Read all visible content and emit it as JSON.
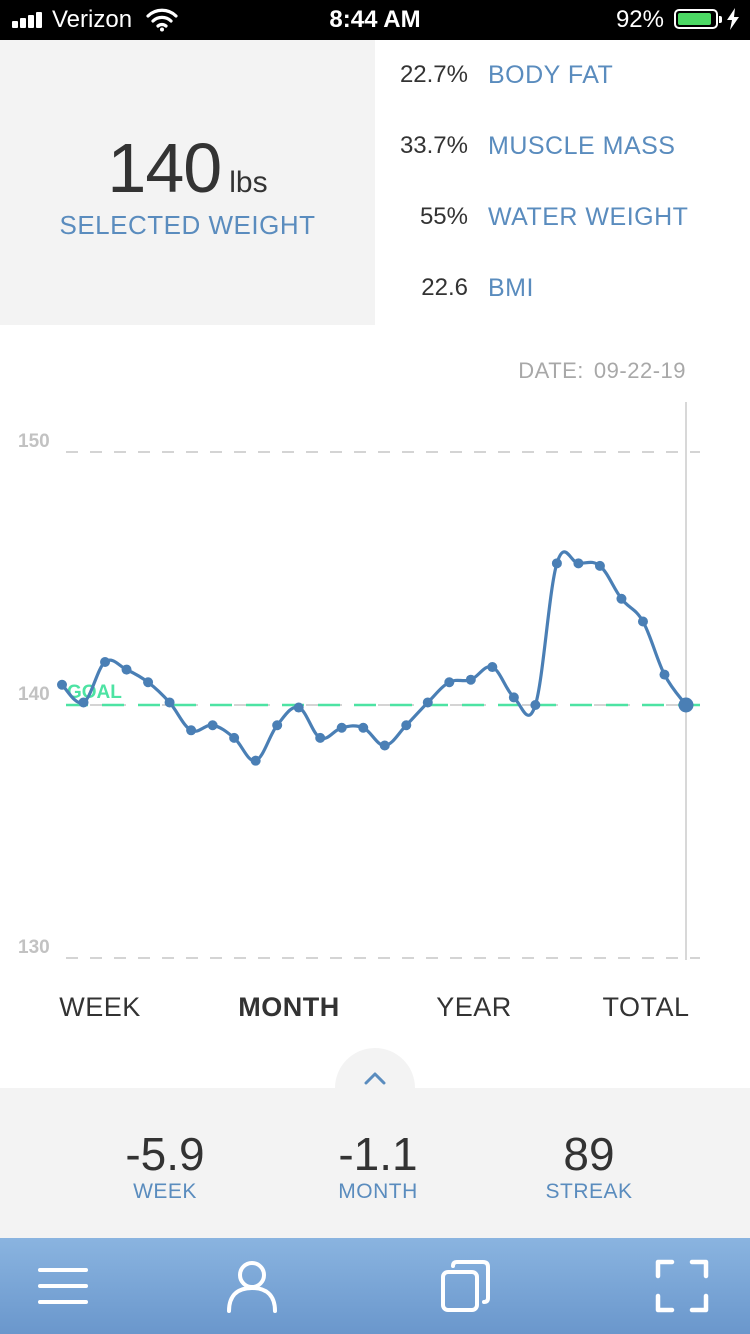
{
  "status_bar": {
    "carrier": "Verizon",
    "time": "8:44 AM",
    "battery_pct": "92%",
    "battery_level": 0.92,
    "battery_color": "#4cd964"
  },
  "weight": {
    "value": "140",
    "unit": "lbs",
    "label": "SELECTED WEIGHT"
  },
  "metrics": [
    {
      "value": "22.7%",
      "label": "BODY FAT"
    },
    {
      "value": "33.7%",
      "label": "MUSCLE MASS"
    },
    {
      "value": "55%",
      "label": "WATER WEIGHT"
    },
    {
      "value": "22.6",
      "label": "BMI"
    }
  ],
  "date": {
    "label": "DATE:",
    "value": "09-22-19"
  },
  "chart_data": {
    "type": "line",
    "y_ticks": [
      "150",
      "140",
      "130"
    ],
    "ylim": [
      130,
      150
    ],
    "grid": "dashed horizontal",
    "goal": {
      "label": "GOAL",
      "value": 140
    },
    "series": [
      {
        "values": [
          140.8,
          140.1,
          141.7,
          141.4,
          140.9,
          140.1,
          139.0,
          139.2,
          138.7,
          137.8,
          139.2,
          139.9,
          138.7,
          139.1,
          139.1,
          138.4,
          139.2,
          140.1,
          140.9,
          141.0,
          141.5,
          140.3,
          140.0,
          145.6,
          145.6,
          145.5,
          144.2,
          143.3,
          141.2,
          140.0
        ],
        "color": "#4a7fb5"
      }
    ],
    "selected_index": 29
  },
  "ranges": {
    "week": "WEEK",
    "month": "MONTH",
    "year": "YEAR",
    "total": "TOTAL",
    "active": "month"
  },
  "stats": [
    {
      "value": "-5.9",
      "label": "WEEK"
    },
    {
      "value": "-1.1",
      "label": "MONTH"
    },
    {
      "value": "89",
      "label": "STREAK"
    }
  ],
  "nav": {
    "icons": [
      "menu-icon",
      "profile-icon",
      "copy-icon",
      "expand-icon"
    ]
  },
  "colors": {
    "accent": "#5a8cbe",
    "line": "#4a7fb5",
    "goal": "#4de3a3",
    "panel": "#f3f3f3"
  }
}
